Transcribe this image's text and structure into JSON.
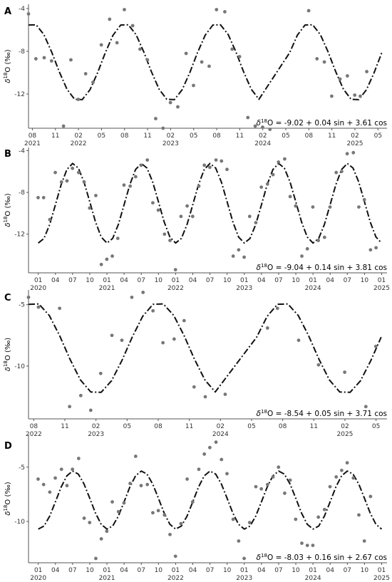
{
  "chart_data": [
    {
      "type": "scatter",
      "panel": "A",
      "equation": "= -9.02 + 0.04 sin + 3.61 cos",
      "ylabel_main": "O (‰)",
      "ylabel_sup": "18",
      "ylabel_delta": "δ",
      "ylim": [
        -15.2,
        -3.6
      ],
      "yticks": [
        -4,
        -8,
        -12
      ],
      "yticklabels": [
        "-4",
        "-8",
        "-12"
      ],
      "xlim": [
        2021.5,
        2025.39
      ],
      "xticks": [
        2021.542,
        2021.792,
        2022.042,
        2022.292,
        2022.542,
        2022.792,
        2023.042,
        2023.292,
        2023.542,
        2023.792,
        2024.042,
        2024.292,
        2024.542,
        2024.792,
        2025.042,
        2025.292
      ],
      "xticklabels": [
        "08",
        "11",
        "02",
        "05",
        "08",
        "11",
        "02",
        "05",
        "08",
        "11",
        "02",
        "05",
        "08",
        "11",
        "02",
        "05"
      ],
      "yearlabels": [
        "2021",
        "2022",
        "2023",
        "2024",
        "2025"
      ],
      "yearpos": [
        2021.542,
        2022.042,
        2023.042,
        2024.042,
        2025.042
      ],
      "fit": {
        "mean": -9.02,
        "sin": 0.04,
        "cos": 3.61
      },
      "curve_x": [
        2021.5,
        2021.583,
        2021.667,
        2021.75,
        2021.833,
        2021.917,
        2022.0,
        2022.083,
        2022.167,
        2022.25,
        2022.333,
        2022.417,
        2022.5,
        2022.583,
        2022.667,
        2022.75,
        2022.833,
        2022.917,
        2023.0,
        2023.083,
        2023.167,
        2023.25,
        2023.333,
        2023.417,
        2023.5,
        2023.583,
        2023.667,
        2023.75,
        2023.833,
        2023.917,
        2024.0,
        2024.333,
        2024.417,
        2024.5,
        2024.583,
        2024.667,
        2024.75,
        2024.833,
        2024.917,
        2025.0,
        2025.083,
        2025.167,
        2025.25,
        2025.333
      ],
      "points": [
        [
          2021.5,
          -4.5
        ],
        [
          2021.58,
          -8.7
        ],
        [
          2021.67,
          -8.6
        ],
        [
          2021.75,
          -8.9
        ],
        [
          2021.88,
          -15.0
        ],
        [
          2021.96,
          -8.8
        ],
        [
          2022.04,
          -12.5
        ],
        [
          2022.12,
          -10.1
        ],
        [
          2022.2,
          -10.9
        ],
        [
          2022.29,
          -7.4
        ],
        [
          2022.38,
          -5.0
        ],
        [
          2022.46,
          -7.2
        ],
        [
          2022.54,
          -4.1
        ],
        [
          2022.63,
          -5.6
        ],
        [
          2022.71,
          -7.8
        ],
        [
          2022.79,
          -8.8
        ],
        [
          2022.88,
          -14.3
        ],
        [
          2022.96,
          -15.2
        ],
        [
          2023.04,
          -12.8
        ],
        [
          2023.12,
          -13.2
        ],
        [
          2023.21,
          -8.2
        ],
        [
          2023.29,
          -11.2
        ],
        [
          2023.38,
          -9.0
        ],
        [
          2023.46,
          -9.4
        ],
        [
          2023.54,
          -4.1
        ],
        [
          2023.63,
          -4.3
        ],
        [
          2023.71,
          -7.8
        ],
        [
          2023.79,
          -8.5
        ],
        [
          2023.88,
          -14.2
        ],
        [
          2023.96,
          -15.0
        ],
        [
          2024.04,
          -15.1
        ],
        [
          2024.12,
          -15.3
        ],
        [
          2024.54,
          -4.2
        ],
        [
          2024.63,
          -8.7
        ],
        [
          2024.71,
          -9.0
        ],
        [
          2024.79,
          -12.2
        ],
        [
          2024.88,
          -10.6
        ],
        [
          2024.96,
          -10.3
        ],
        [
          2025.04,
          -12.1
        ],
        [
          2025.1,
          -12.2
        ],
        [
          2025.17,
          -9.9
        ]
      ]
    },
    {
      "type": "scatter",
      "panel": "B",
      "equation": "= -9.04 + 0.14 sin + 3.81 cos",
      "ylabel_main": "O (‰)",
      "ylabel_sup": "18",
      "ylabel_delta": "δ",
      "ylim": [
        -15.7,
        -3.7
      ],
      "yticks": [
        -4,
        -8,
        -12
      ],
      "yticklabels": [
        "-4",
        "-8",
        "-12"
      ],
      "xlim": [
        2019.9,
        2025.12
      ],
      "xticks": [
        2020.042,
        2020.292,
        2020.542,
        2020.792,
        2021.042,
        2021.292,
        2021.542,
        2021.792,
        2022.042,
        2022.292,
        2022.542,
        2022.792,
        2023.042,
        2023.292,
        2023.542,
        2023.792,
        2024.042,
        2024.292,
        2024.542,
        2024.792,
        2025.042
      ],
      "xticklabels": [
        "01",
        "04",
        "07",
        "10",
        "01",
        "04",
        "07",
        "10",
        "01",
        "04",
        "07",
        "10",
        "01",
        "04",
        "07",
        "10",
        "01",
        "04",
        "07",
        "10",
        "01"
      ],
      "yearlabels": [
        "2020",
        "2021",
        "2022",
        "2023",
        "2024",
        "2025"
      ],
      "yearpos": [
        2020.042,
        2021.042,
        2022.042,
        2023.042,
        2024.042,
        2025.042
      ],
      "fit": {
        "mean": -9.04,
        "sin": 0.14,
        "cos": 3.81
      },
      "curve_start": 2020.042,
      "curve_end": 2025.042,
      "points": [
        [
          2020.04,
          -8.5
        ],
        [
          2020.12,
          -8.5
        ],
        [
          2020.21,
          -10.6
        ],
        [
          2020.29,
          -6.1
        ],
        [
          2020.38,
          -7.0
        ],
        [
          2020.46,
          -6.9
        ],
        [
          2020.54,
          -5.7
        ],
        [
          2020.63,
          -6.1
        ],
        [
          2020.71,
          -7.0
        ],
        [
          2020.79,
          -9.5
        ],
        [
          2020.88,
          -8.3
        ],
        [
          2020.96,
          -14.9
        ],
        [
          2021.04,
          -14.4
        ],
        [
          2021.12,
          -14.1
        ],
        [
          2021.2,
          -12.4
        ],
        [
          2021.29,
          -7.3
        ],
        [
          2021.38,
          -7.4
        ],
        [
          2021.46,
          -6.5
        ],
        [
          2021.54,
          -5.4
        ],
        [
          2021.63,
          -4.9
        ],
        [
          2021.71,
          -9.0
        ],
        [
          2021.79,
          -9.7
        ],
        [
          2021.88,
          -12.0
        ],
        [
          2021.96,
          -12.6
        ],
        [
          2022.04,
          -15.4
        ],
        [
          2022.12,
          -10.3
        ],
        [
          2022.21,
          -9.3
        ],
        [
          2022.29,
          -10.3
        ],
        [
          2022.38,
          -7.4
        ],
        [
          2022.46,
          -5.4
        ],
        [
          2022.54,
          -5.6
        ],
        [
          2022.63,
          -4.9
        ],
        [
          2022.71,
          -5.0
        ],
        [
          2022.79,
          -5.8
        ],
        [
          2022.88,
          -14.1
        ],
        [
          2022.96,
          -13.5
        ],
        [
          2023.04,
          -14.2
        ],
        [
          2023.12,
          -10.3
        ],
        [
          2023.21,
          -10.9
        ],
        [
          2023.29,
          -7.5
        ],
        [
          2023.38,
          -7.2
        ],
        [
          2023.46,
          -6.3
        ],
        [
          2023.54,
          -5.1
        ],
        [
          2023.63,
          -4.8
        ],
        [
          2023.71,
          -8.4
        ],
        [
          2023.79,
          -9.3
        ],
        [
          2023.88,
          -14.1
        ],
        [
          2023.96,
          -13.4
        ],
        [
          2024.04,
          -9.4
        ],
        [
          2024.12,
          -12.6
        ],
        [
          2024.21,
          -12.3
        ],
        [
          2024.29,
          -9.4
        ],
        [
          2024.38,
          -6.1
        ],
        [
          2024.46,
          -6.0
        ],
        [
          2024.54,
          -4.3
        ],
        [
          2024.63,
          -4.2
        ],
        [
          2024.71,
          -9.4
        ],
        [
          2024.79,
          -8.7
        ],
        [
          2024.88,
          -13.5
        ],
        [
          2024.96,
          -13.3
        ]
      ]
    },
    {
      "type": "scatter",
      "panel": "C",
      "equation": "= -8.54 + 0.05 sin + 3.71 cos",
      "ylabel_main": "O (‰)",
      "ylabel_sup": "18",
      "ylabel_delta": "δ",
      "ylim": [
        -14.3,
        -3.8
      ],
      "yticks": [
        -5,
        -10
      ],
      "yticklabels": [
        "-5",
        "-10"
      ],
      "xlim": [
        2022.5,
        2025.38
      ],
      "xticks": [
        2022.542,
        2022.792,
        2023.042,
        2023.292,
        2023.542,
        2023.792,
        2024.042,
        2024.292,
        2024.542,
        2024.792,
        2025.042,
        2025.292
      ],
      "xticklabels": [
        "08",
        "11",
        "02",
        "05",
        "08",
        "11",
        "02",
        "05",
        "08",
        "11",
        "02",
        "05"
      ],
      "yearlabels": [
        "2022",
        "2023",
        "2024",
        "2025"
      ],
      "yearpos": [
        2022.542,
        2023.042,
        2024.042,
        2025.042
      ],
      "fit": {
        "mean": -8.54,
        "sin": 0.05,
        "cos": 3.71
      },
      "curve_x": [
        2022.5,
        2022.583,
        2022.667,
        2022.75,
        2022.833,
        2022.917,
        2023.0,
        2023.083,
        2023.167,
        2023.25,
        2023.333,
        2023.417,
        2023.5,
        2023.583,
        2023.667,
        2023.75,
        2023.833,
        2023.917,
        2024.0,
        2024.333,
        2024.417,
        2024.5,
        2024.583,
        2024.667,
        2024.75,
        2024.833,
        2024.917,
        2025.0,
        2025.083,
        2025.167,
        2025.25,
        2025.333
      ],
      "points": [
        [
          2022.5,
          -4.4
        ],
        [
          2022.58,
          -5.2
        ],
        [
          2022.75,
          -5.3
        ],
        [
          2022.83,
          -13.3
        ],
        [
          2022.92,
          -12.4
        ],
        [
          2023.0,
          -13.6
        ],
        [
          2023.08,
          -10.6
        ],
        [
          2023.17,
          -7.5
        ],
        [
          2023.25,
          -7.9
        ],
        [
          2023.33,
          -4.4
        ],
        [
          2023.42,
          -4.0
        ],
        [
          2023.5,
          -5.5
        ],
        [
          2023.58,
          -8.1
        ],
        [
          2023.67,
          -7.8
        ],
        [
          2023.75,
          -6.3
        ],
        [
          2023.83,
          -11.7
        ],
        [
          2023.92,
          -12.5
        ],
        [
          2024.08,
          -12.3
        ],
        [
          2024.42,
          -6.9
        ],
        [
          2024.5,
          -5.3
        ],
        [
          2024.67,
          -7.9
        ],
        [
          2024.83,
          -9.9
        ],
        [
          2025.04,
          -10.5
        ],
        [
          2025.21,
          -13.3
        ],
        [
          2025.29,
          -8.4
        ]
      ]
    },
    {
      "type": "scatter",
      "panel": "D",
      "equation": "= -8.03 + 0.16 sin + 2.67 cos",
      "ylabel_main": "O (‰)",
      "ylabel_sup": "18",
      "ylabel_delta": "δ",
      "ylim": [
        -13.8,
        -2.0
      ],
      "yticks": [
        -5,
        -10
      ],
      "yticklabels": [
        "-5",
        "-10"
      ],
      "xlim": [
        2019.9,
        2025.12
      ],
      "xticks": [
        2020.042,
        2020.292,
        2020.542,
        2020.792,
        2021.042,
        2021.292,
        2021.542,
        2021.792,
        2022.042,
        2022.292,
        2022.542,
        2022.792,
        2023.042,
        2023.292,
        2023.542,
        2023.792,
        2024.042,
        2024.292,
        2024.542,
        2024.792,
        2025.042
      ],
      "xticklabels": [
        "01",
        "04",
        "07",
        "10",
        "01",
        "04",
        "07",
        "10",
        "01",
        "04",
        "07",
        "10",
        "01",
        "04",
        "07",
        "10",
        "01",
        "04",
        "07",
        "10",
        "01"
      ],
      "yearlabels": [
        "2020",
        "2021",
        "2022",
        "2023",
        "2024",
        "2025"
      ],
      "yearpos": [
        2020.042,
        2021.042,
        2022.042,
        2023.042,
        2024.042,
        2025.042
      ],
      "fit": {
        "mean": -8.03,
        "sin": 0.16,
        "cos": 2.67
      },
      "curve_start": 2020.042,
      "curve_end": 2025.042,
      "points": [
        [
          2020.04,
          -6.1
        ],
        [
          2020.12,
          -6.6
        ],
        [
          2020.21,
          -7.3
        ],
        [
          2020.29,
          -6.0
        ],
        [
          2020.38,
          -5.2
        ],
        [
          2020.46,
          -6.7
        ],
        [
          2020.54,
          -5.2
        ],
        [
          2020.63,
          -4.2
        ],
        [
          2020.71,
          -9.7
        ],
        [
          2020.79,
          -10.1
        ],
        [
          2020.88,
          -13.4
        ],
        [
          2020.96,
          -11.6
        ],
        [
          2021.04,
          -10.9
        ],
        [
          2021.12,
          -8.2
        ],
        [
          2021.21,
          -9.1
        ],
        [
          2021.29,
          -8.3
        ],
        [
          2021.38,
          -6.5
        ],
        [
          2021.46,
          -4.0
        ],
        [
          2021.54,
          -6.7
        ],
        [
          2021.63,
          -6.6
        ],
        [
          2021.71,
          -9.2
        ],
        [
          2021.79,
          -9.0
        ],
        [
          2021.88,
          -9.4
        ],
        [
          2021.96,
          -11.2
        ],
        [
          2022.04,
          -13.2
        ],
        [
          2022.12,
          -10.2
        ],
        [
          2022.21,
          -6.1
        ],
        [
          2022.29,
          -8.2
        ],
        [
          2022.38,
          -5.2
        ],
        [
          2022.46,
          -3.8
        ],
        [
          2022.54,
          -3.2
        ],
        [
          2022.63,
          -2.7
        ],
        [
          2022.71,
          -4.3
        ],
        [
          2022.79,
          -5.6
        ],
        [
          2022.88,
          -9.8
        ],
        [
          2022.96,
          -11.8
        ],
        [
          2023.04,
          -13.4
        ],
        [
          2023.12,
          -10.1
        ],
        [
          2023.21,
          -6.8
        ],
        [
          2023.29,
          -7.0
        ],
        [
          2023.38,
          -6.6
        ],
        [
          2023.46,
          -5.9
        ],
        [
          2023.54,
          -5.0
        ],
        [
          2023.63,
          -7.4
        ],
        [
          2023.71,
          -6.2
        ],
        [
          2023.79,
          -9.8
        ],
        [
          2023.88,
          -12.0
        ],
        [
          2023.96,
          -12.2
        ],
        [
          2024.04,
          -12.2
        ],
        [
          2024.12,
          -9.6
        ],
        [
          2024.21,
          -8.9
        ],
        [
          2024.29,
          -6.8
        ],
        [
          2024.38,
          -5.9
        ],
        [
          2024.46,
          -5.3
        ],
        [
          2024.54,
          -4.6
        ],
        [
          2024.63,
          -6.0
        ],
        [
          2024.71,
          -9.4
        ],
        [
          2024.79,
          -11.8
        ],
        [
          2024.88,
          -7.7
        ]
      ]
    }
  ]
}
